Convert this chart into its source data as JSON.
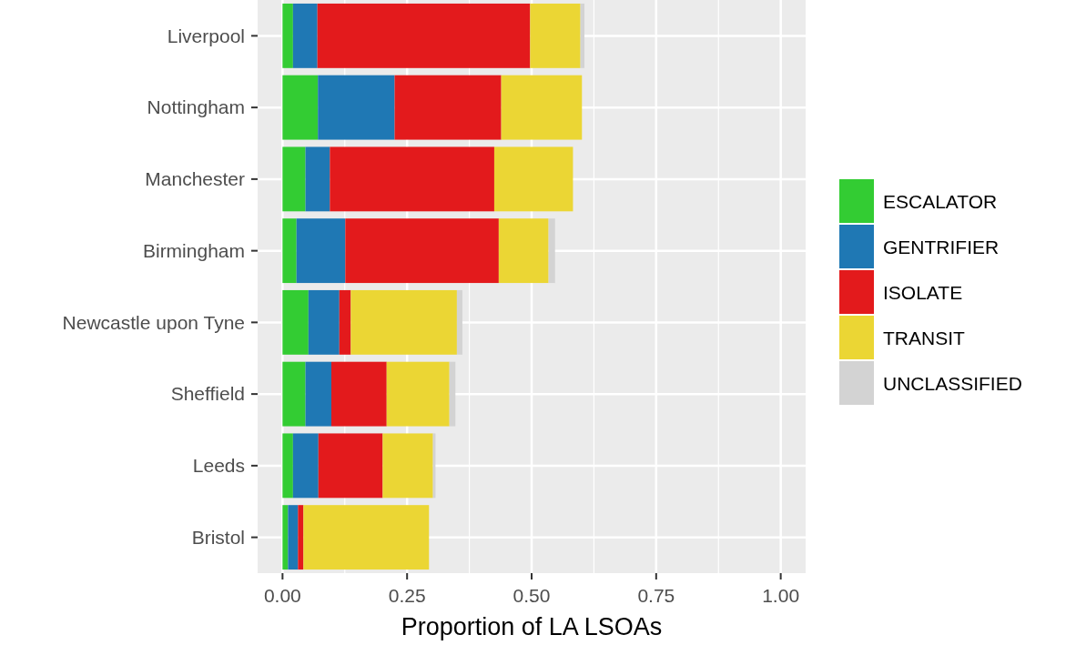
{
  "chart_data": {
    "type": "bar",
    "orientation": "horizontal",
    "stacked": true,
    "xlabel": "Proportion of LA LSOAs",
    "categories": [
      "Liverpool",
      "Nottingham",
      "Manchester",
      "Birmingham",
      "Newcastle upon Tyne",
      "Sheffield",
      "Leeds",
      "Bristol"
    ],
    "series": [
      {
        "name": "ESCALATOR",
        "color": "#33cc33",
        "values": [
          0.021,
          0.071,
          0.046,
          0.028,
          0.052,
          0.046,
          0.021,
          0.011
        ]
      },
      {
        "name": "GENTRIFIER",
        "color": "#1f78b4",
        "values": [
          0.049,
          0.154,
          0.049,
          0.098,
          0.062,
          0.052,
          0.051,
          0.02
        ]
      },
      {
        "name": "ISOLATE",
        "color": "#e31a1c",
        "values": [
          0.427,
          0.214,
          0.33,
          0.308,
          0.023,
          0.111,
          0.129,
          0.011
        ]
      },
      {
        "name": "TRANSIT",
        "color": "#ebd634",
        "values": [
          0.101,
          0.162,
          0.158,
          0.1,
          0.213,
          0.126,
          0.101,
          0.252
        ]
      },
      {
        "name": "UNCLASSIFIED",
        "color": "#d3d3d3",
        "values": [
          0.008,
          0,
          0,
          0.013,
          0.011,
          0.012,
          0.005,
          0
        ]
      }
    ],
    "xlim": [
      -0.05,
      1.05
    ],
    "xticks": [
      {
        "value": 0,
        "label": "0.00"
      },
      {
        "value": 0.25,
        "label": "0.25"
      },
      {
        "value": 0.5,
        "label": "0.50"
      },
      {
        "value": 0.75,
        "label": "0.75"
      },
      {
        "value": 1,
        "label": "1.00"
      }
    ],
    "grid": true,
    "legend": "right"
  }
}
